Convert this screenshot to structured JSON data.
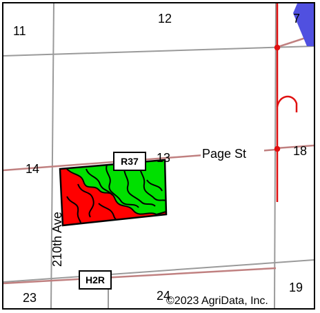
{
  "map": {
    "sections": {
      "s11": "11",
      "s12": "12",
      "s7": "7",
      "s14": "14",
      "s13": "13",
      "s18": "18",
      "s23": "23",
      "s24": "24",
      "s19": "19"
    },
    "roads": {
      "page_st": "Page St",
      "ave_210th": "210th Ave"
    },
    "shields": {
      "r37": "R37",
      "h2r": "H2R"
    },
    "copyright": "©2023 AgriData, Inc.",
    "colors": {
      "grid_line": "#9a9a9a",
      "road_line": "#c08080",
      "red_highway": "#e01010",
      "blue_feature": "#5050e0",
      "field_red": "#ff0000",
      "field_green": "#00e000",
      "contour": "#000000"
    }
  }
}
